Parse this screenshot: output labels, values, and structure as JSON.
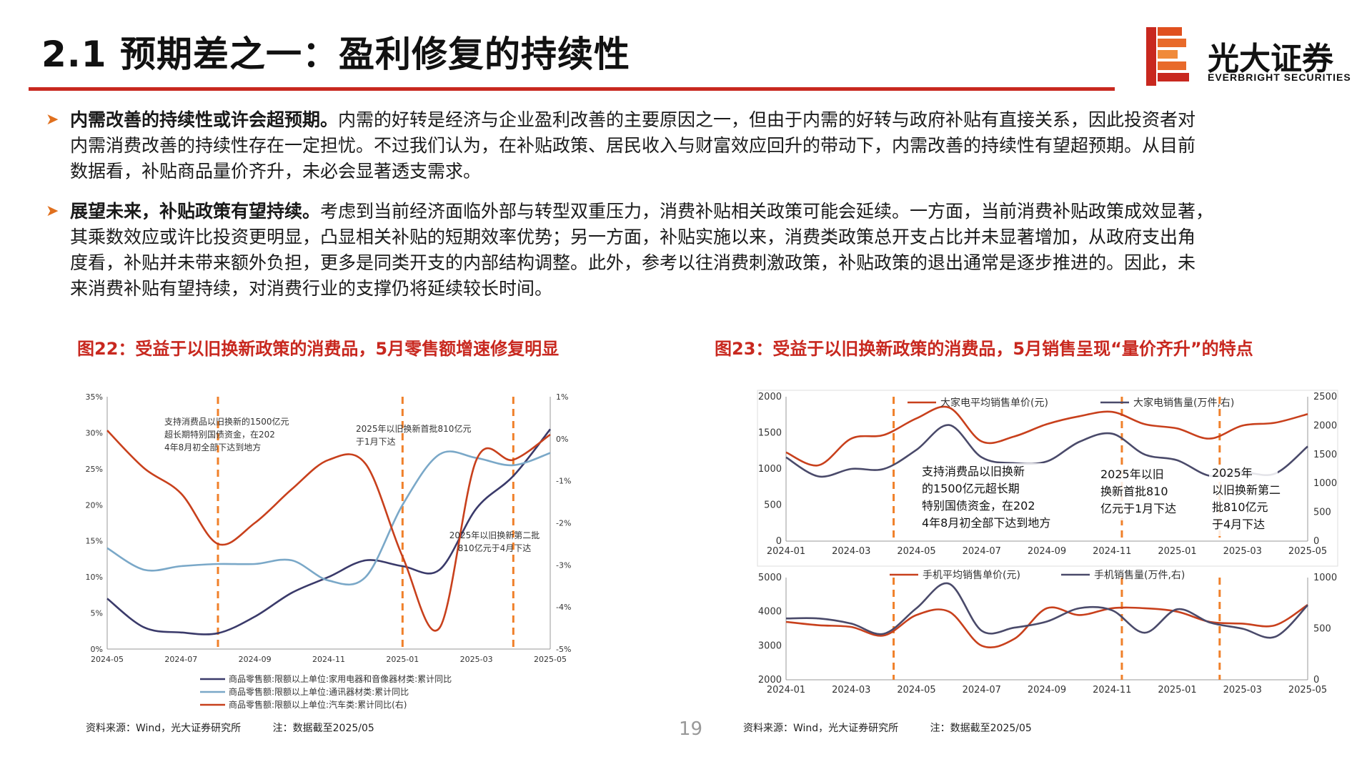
{
  "header": {
    "title": "2.1 预期差之一：盈利修复的持续性",
    "logo_cn": "光大证券",
    "logo_en": "EVERBRIGHT SECURITIES",
    "accent_color": "#c8281f"
  },
  "bullets": [
    {
      "bold": "内需改善的持续性或许会超预期。",
      "lines": [
        "内需的好转是经济与企业盈利改善的主要原因之一，但由于内需的好转与政府补贴有直接关系，因此投资者对",
        "内需消费改善的持续性存在一定担忧。不过我们认为，在补贴政策、居民收入与财富效应回升的带动下，内需改善的持续性有望超预期。从目前",
        "数据看，补贴商品量价齐升，未必会显著透支需求。"
      ]
    },
    {
      "bold": "展望未来，补贴政策有望持续。",
      "lines": [
        "考虑到当前经济面临外部与转型双重压力，消费补贴相关政策可能会延续。一方面，当前消费补贴政策成效显著，",
        "其乘数效应或许比投资更明显，凸显相关补贴的短期效率优势；另一方面，补贴实施以来，消费类政策总开支占比并未显著增加，从政府支出角",
        "度看，补贴并未带来额外负担，更多是同类开支的内部结构调整。此外，参考以往消费刺激政策，补贴政策的退出通常是逐步推进的。因此，未",
        "来消费补贴有望持续，对消费行业的支撑仍将延续较长时间。"
      ]
    }
  ],
  "figures": {
    "fig22_title": "图22：受益于以旧换新政策的消费品，5月零售额增速修复明显",
    "fig23_title": "图23：受益于以旧换新政策的消费品，5月销售呈现“量价齐升”的特点",
    "source_left": "资料来源：Wind，光大证券研究所",
    "note_left": "注：数据截至2025/05",
    "source_right": "资料来源：Wind，光大证券研究所",
    "note_right": "注：数据截至2025/05"
  },
  "page_number": "19",
  "chart_data": [
    {
      "id": "fig22",
      "type": "line",
      "x_labels": [
        "2024-05",
        "2024-07",
        "2024-09",
        "2024-11",
        "2025-01",
        "2025-03",
        "2025-05"
      ],
      "x_range": [
        0,
        12
      ],
      "ylim_left": [
        0,
        35
      ],
      "yticks_left": [
        "0%",
        "5%",
        "10%",
        "15%",
        "20%",
        "25%",
        "30%",
        "35%"
      ],
      "ylim_right": [
        -5,
        1
      ],
      "yticks_right": [
        "-5%",
        "-4%",
        "-3%",
        "-2%",
        "-1%",
        "0%",
        "1%"
      ],
      "series": [
        {
          "name": "商品零售额:限额以上单位:家用电器和音像器材类:累计同比",
          "axis": "left",
          "color": "#3a3a6a",
          "x": [
            0,
            1,
            2,
            3,
            4,
            5,
            6,
            7,
            8,
            9,
            10,
            11,
            12
          ],
          "y": [
            7.0,
            3.0,
            2.3,
            2.2,
            4.5,
            7.8,
            10.0,
            12.3,
            11.5,
            11.0,
            19.5,
            24.0,
            30.5
          ]
        },
        {
          "name": "商品零售额:限额以上单位:通讯器材类:累计同比",
          "axis": "left",
          "color": "#7aa8c8",
          "x": [
            0,
            1,
            2,
            3,
            4,
            5,
            6,
            7,
            8,
            9,
            10,
            11,
            12
          ],
          "y": [
            14.0,
            11.0,
            11.5,
            11.8,
            11.8,
            12.3,
            9.5,
            10.0,
            20.0,
            27.0,
            26.5,
            25.5,
            27.2
          ]
        },
        {
          "name": "商品零售额:限额以上单位:汽车类:累计同比(右)",
          "axis": "right",
          "color": "#c8401c",
          "x": [
            0,
            1,
            2,
            3,
            4,
            5,
            6,
            7,
            8,
            9,
            10,
            11,
            12
          ],
          "y": [
            0.2,
            -0.7,
            -1.3,
            -2.5,
            -2.0,
            -1.2,
            -0.5,
            -0.6,
            -2.8,
            -4.5,
            -0.5,
            -0.5,
            0.1
          ]
        }
      ],
      "vlines": [
        3.0,
        8.0,
        11.0
      ],
      "annotations": [
        "支持消费品以旧换新的1500亿元超长期特别国债资金，在2024年8月初全部下达到地方",
        "2025年以旧换新首批810亿元于1月下达",
        "2025年以旧换新第二批810亿元于4月下达"
      ],
      "grid": false,
      "legend": "bottom"
    },
    {
      "id": "fig23_top",
      "type": "line",
      "x_labels": [
        "2024-01",
        "2024-03",
        "2024-05",
        "2024-07",
        "2024-09",
        "2024-11",
        "2025-01",
        "2025-03",
        "2025-05"
      ],
      "x_range": [
        0,
        16
      ],
      "ylim_left": [
        0,
        2000
      ],
      "yticks_left": [
        "0",
        "500",
        "1000",
        "1500",
        "2000"
      ],
      "ylim_right": [
        0,
        2500
      ],
      "yticks_right": [
        "0",
        "500",
        "1000",
        "1500",
        "2000",
        "2500"
      ],
      "series": [
        {
          "name": "大家电平均销售单价(元)",
          "axis": "left",
          "color": "#c8401c",
          "x": [
            0,
            1,
            2,
            3,
            4,
            5,
            6,
            7,
            8,
            9,
            10,
            11,
            12,
            13,
            14,
            15,
            16
          ],
          "y": [
            1230,
            1050,
            1420,
            1470,
            1700,
            1850,
            1380,
            1450,
            1620,
            1730,
            1790,
            1620,
            1560,
            1420,
            1600,
            1640,
            1760
          ]
        },
        {
          "name": "大家电销售量(万件,右)",
          "axis": "right",
          "color": "#4a4a6a",
          "x": [
            0,
            1,
            2,
            3,
            4,
            5,
            6,
            7,
            8,
            9,
            10,
            11,
            12,
            13,
            14,
            15,
            16
          ],
          "y": [
            1450,
            1120,
            1250,
            1250,
            1580,
            2010,
            1450,
            1350,
            1380,
            1720,
            1860,
            1500,
            1400,
            1130,
            1190,
            1170,
            1640
          ]
        }
      ],
      "vlines": [
        3.3,
        10.3,
        13.3
      ],
      "annotations": [
        "支持消费品以旧换新的1500亿元超长期特别国债资金，在2024年8月初全部下达到地方",
        "2025年以旧换新首批810亿元于1月下达",
        "2025年以旧换新第二批810亿元于4月下达"
      ],
      "legend": "top"
    },
    {
      "id": "fig23_bottom",
      "type": "line",
      "x_labels": [
        "2024-01",
        "2024-03",
        "2024-05",
        "2024-07",
        "2024-09",
        "2024-11",
        "2025-01",
        "2025-03",
        "2025-05"
      ],
      "x_range": [
        0,
        16
      ],
      "ylim_left": [
        2000,
        5000
      ],
      "yticks_left": [
        "2000",
        "3000",
        "4000",
        "5000"
      ],
      "ylim_right": [
        0,
        1000
      ],
      "yticks_right": [
        "0",
        "500",
        "1000"
      ],
      "series": [
        {
          "name": "手机平均销售单价(元)",
          "axis": "left",
          "color": "#c8401c",
          "x": [
            0,
            1,
            2,
            3,
            4,
            5,
            6,
            7,
            8,
            9,
            10,
            11,
            12,
            13,
            14,
            15,
            16
          ],
          "y": [
            3700,
            3600,
            3550,
            3300,
            3900,
            4000,
            3000,
            3200,
            4100,
            3900,
            4100,
            4100,
            4000,
            3700,
            3650,
            3600,
            4200
          ]
        },
        {
          "name": "手机销售量(万件,右)",
          "axis": "right",
          "color": "#4a4a6a",
          "x": [
            0,
            1,
            2,
            3,
            4,
            5,
            6,
            7,
            8,
            9,
            10,
            11,
            12,
            13,
            14,
            15,
            16
          ],
          "y": [
            600,
            600,
            550,
            450,
            700,
            940,
            480,
            510,
            570,
            700,
            680,
            460,
            690,
            560,
            500,
            420,
            730
          ]
        }
      ],
      "vlines": [
        3.3,
        10.3,
        13.3
      ],
      "legend": "top"
    }
  ]
}
